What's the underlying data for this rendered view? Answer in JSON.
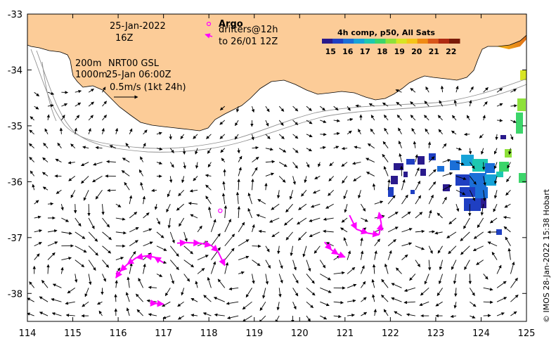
{
  "map": {
    "lon_range": [
      114,
      125
    ],
    "lat_range": [
      -38.5,
      -33
    ],
    "lon_ticks": [
      "114",
      "115",
      "116",
      "117",
      "118",
      "119",
      "120",
      "121",
      "122",
      "123",
      "124",
      "125"
    ],
    "lat_ticks": [
      "-33",
      "-34",
      "-35",
      "-36",
      "-37",
      "-38"
    ],
    "lat_tick_values": [
      -33,
      -34,
      -35,
      -36,
      -37,
      -38
    ],
    "land_color": "#fccc98",
    "contour_color": "#909090"
  },
  "annotations": {
    "date": "25-Jan-2022",
    "time": "16Z",
    "contour_200": "200m",
    "contour_1000": "1000m",
    "product": "NRT00 GSL",
    "product_time": "25-Jan 06:00Z",
    "scale_label": "0.5m/s (1kt 24h)",
    "argo_label": "Argo",
    "drifters_label": "drifters@12h",
    "drifters_to": "to 26/01 12Z"
  },
  "colorbar": {
    "title": "4h comp, p50, All Sats",
    "labels": [
      "15",
      "16",
      "17",
      "18",
      "19",
      "20",
      "21",
      "22"
    ],
    "range": [
      14.5,
      22.5
    ],
    "colors": [
      "#2a1a8c",
      "#1f3fc2",
      "#1b6fd8",
      "#17a3d8",
      "#1dc8b0",
      "#3cd56a",
      "#8ee13a",
      "#d8e524",
      "#f5c518",
      "#f08a14",
      "#d9561a",
      "#b02a12",
      "#7a1a08"
    ]
  },
  "credit": "© IMOS 28-Jan-2022 15:38 Hobart",
  "markers": {
    "argo_color": "#ff00ff",
    "drifter_color": "#ff00ff",
    "argo": [
      {
        "lon": 118.25,
        "lat": -36.52
      }
    ],
    "drifter_tracks": [
      [
        [
          117.0,
          -37.45
        ],
        [
          116.8,
          -37.35
        ],
        [
          116.6,
          -37.33
        ],
        [
          116.4,
          -37.36
        ],
        [
          116.2,
          -37.48
        ],
        [
          116.05,
          -37.6
        ],
        [
          115.95,
          -37.72
        ]
      ],
      [
        [
          117.3,
          -37.1
        ],
        [
          117.5,
          -37.09
        ],
        [
          117.8,
          -37.1
        ],
        [
          118.05,
          -37.14
        ],
        [
          118.2,
          -37.25
        ],
        [
          118.35,
          -37.5
        ]
      ],
      [
        [
          116.7,
          -38.17
        ],
        [
          116.85,
          -38.18
        ],
        [
          117.0,
          -38.19
        ]
      ],
      [
        [
          120.55,
          -37.08
        ],
        [
          120.7,
          -37.22
        ],
        [
          120.85,
          -37.3
        ],
        [
          121.0,
          -37.35
        ]
      ],
      [
        [
          121.1,
          -36.6
        ],
        [
          121.25,
          -36.85
        ],
        [
          121.5,
          -36.92
        ],
        [
          121.75,
          -36.95
        ],
        [
          121.8,
          -36.75
        ],
        [
          121.75,
          -36.55
        ]
      ]
    ]
  }
}
